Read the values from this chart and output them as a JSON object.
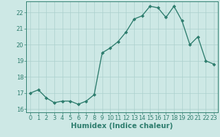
{
  "xlabel": "Humidex (Indice chaleur)",
  "x": [
    0,
    1,
    2,
    3,
    4,
    5,
    6,
    7,
    8,
    9,
    10,
    11,
    12,
    13,
    14,
    15,
    16,
    17,
    18,
    19,
    20,
    21,
    22,
    23
  ],
  "y": [
    17.0,
    17.2,
    16.7,
    16.4,
    16.5,
    16.5,
    16.3,
    16.5,
    16.9,
    19.5,
    19.8,
    20.2,
    20.8,
    21.6,
    21.8,
    22.4,
    22.3,
    21.7,
    22.4,
    21.5,
    20.0,
    20.5,
    19.0,
    18.8
  ],
  "line_color": "#2e7d6e",
  "bg_color": "#cde8e5",
  "grid_color": "#aacfcc",
  "ylim": [
    15.8,
    22.7
  ],
  "xlim": [
    -0.5,
    23.5
  ],
  "yticks": [
    16,
    17,
    18,
    19,
    20,
    21,
    22
  ],
  "xticks": [
    0,
    1,
    2,
    3,
    4,
    5,
    6,
    7,
    8,
    9,
    10,
    11,
    12,
    13,
    14,
    15,
    16,
    17,
    18,
    19,
    20,
    21,
    22,
    23
  ],
  "marker": "D",
  "marker_size": 2.2,
  "line_width": 1.0,
  "tick_fontsize": 6.0,
  "xlabel_fontsize": 7.5
}
